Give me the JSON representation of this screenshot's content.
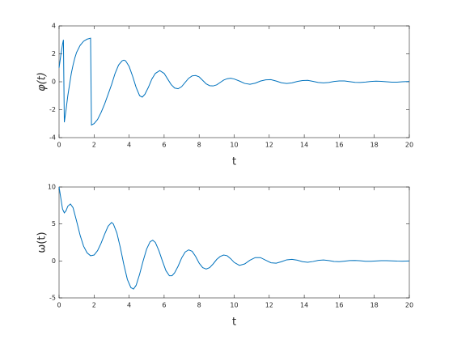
{
  "chart_data": [
    {
      "type": "line",
      "xlabel": "t",
      "ylabel": "φ(t)",
      "x": [
        0,
        0.1,
        0.2,
        0.25,
        0.3,
        0.4,
        0.5,
        0.6,
        0.7,
        0.8,
        0.9,
        1.0,
        1.2,
        1.4,
        1.6,
        1.8,
        1.85,
        2.0,
        2.2,
        2.4,
        2.6,
        2.8,
        3.0,
        3.2,
        3.4,
        3.6,
        3.7,
        3.8,
        4.0,
        4.2,
        4.4,
        4.6,
        4.75,
        4.9,
        5.1,
        5.3,
        5.5,
        5.75,
        6.0,
        6.2,
        6.4,
        6.6,
        6.8,
        7.0,
        7.2,
        7.4,
        7.6,
        7.8,
        8.0,
        8.2,
        8.4,
        8.6,
        8.8,
        9.0,
        9.2,
        9.4,
        9.6,
        9.8,
        10.0,
        10.3,
        10.6,
        10.9,
        11.2,
        11.5,
        11.8,
        12.1,
        12.4,
        12.7,
        13.0,
        13.3,
        13.6,
        13.9,
        14.2,
        14.5,
        14.8,
        15.1,
        15.4,
        15.7,
        16.0,
        16.3,
        16.6,
        16.9,
        17.2,
        17.5,
        17.8,
        18.1,
        18.4,
        18.7,
        19.0,
        19.3,
        19.6,
        20
      ],
      "series": [
        {
          "color": "#0072bd",
          "values": [
            1.0,
            1.9,
            2.7,
            3.0,
            -2.9,
            -2.0,
            -1.0,
            -0.2,
            0.6,
            1.2,
            1.7,
            2.1,
            2.6,
            2.9,
            3.05,
            3.12,
            -3.1,
            -3.0,
            -2.7,
            -2.2,
            -1.6,
            -0.9,
            -0.2,
            0.6,
            1.2,
            1.5,
            1.55,
            1.5,
            1.1,
            0.4,
            -0.4,
            -1.0,
            -1.1,
            -0.9,
            -0.4,
            0.2,
            0.6,
            0.8,
            0.6,
            0.2,
            -0.2,
            -0.45,
            -0.5,
            -0.35,
            -0.05,
            0.25,
            0.42,
            0.45,
            0.35,
            0.1,
            -0.15,
            -0.28,
            -0.3,
            -0.22,
            -0.05,
            0.12,
            0.22,
            0.25,
            0.2,
            0.05,
            -0.12,
            -0.18,
            -0.1,
            0.05,
            0.14,
            0.15,
            0.05,
            -0.07,
            -0.12,
            -0.08,
            0.02,
            0.09,
            0.1,
            0.03,
            -0.05,
            -0.08,
            -0.05,
            0.02,
            0.06,
            0.06,
            0.01,
            -0.04,
            -0.05,
            -0.02,
            0.02,
            0.04,
            0.03,
            0,
            -0.03,
            -0.03,
            0,
            0.02
          ]
        }
      ],
      "xlim": [
        0,
        20
      ],
      "ylim": [
        -4,
        4
      ],
      "xticks": [
        0,
        2,
        4,
        6,
        8,
        10,
        12,
        14,
        16,
        18,
        20
      ],
      "yticks": [
        -4,
        -2,
        0,
        2,
        4
      ]
    },
    {
      "type": "line",
      "xlabel": "t",
      "ylabel": "ω(t)",
      "x": [
        0,
        0.1,
        0.2,
        0.3,
        0.4,
        0.5,
        0.65,
        0.8,
        1.0,
        1.2,
        1.4,
        1.6,
        1.8,
        2.0,
        2.2,
        2.4,
        2.6,
        2.8,
        3.0,
        3.1,
        3.3,
        3.5,
        3.7,
        3.9,
        4.1,
        4.25,
        4.4,
        4.6,
        4.8,
        5.0,
        5.2,
        5.35,
        5.5,
        5.7,
        5.9,
        6.1,
        6.3,
        6.45,
        6.6,
        6.8,
        7.0,
        7.2,
        7.4,
        7.6,
        7.8,
        8.0,
        8.2,
        8.4,
        8.6,
        8.8,
        9.0,
        9.2,
        9.4,
        9.6,
        9.8,
        10.0,
        10.3,
        10.6,
        10.9,
        11.2,
        11.5,
        11.8,
        12.1,
        12.4,
        12.7,
        13.0,
        13.3,
        13.6,
        13.9,
        14.2,
        14.5,
        14.8,
        15.1,
        15.4,
        15.7,
        16.0,
        16.3,
        16.6,
        16.9,
        17.2,
        17.5,
        17.8,
        18.1,
        18.4,
        18.7,
        19.0,
        19.3,
        19.6,
        20
      ],
      "series": [
        {
          "color": "#0072bd",
          "values": [
            10,
            8.5,
            7.0,
            6.5,
            6.8,
            7.4,
            7.7,
            7.2,
            5.4,
            3.5,
            2.0,
            1.1,
            0.7,
            0.8,
            1.4,
            2.4,
            3.6,
            4.7,
            5.2,
            5.0,
            3.8,
            1.8,
            -0.5,
            -2.5,
            -3.6,
            -3.8,
            -3.3,
            -1.8,
            0.0,
            1.6,
            2.6,
            2.8,
            2.5,
            1.4,
            0.0,
            -1.3,
            -2.0,
            -2.0,
            -1.6,
            -0.7,
            0.4,
            1.2,
            1.5,
            1.3,
            0.6,
            -0.3,
            -0.9,
            -1.1,
            -0.9,
            -0.4,
            0.2,
            0.6,
            0.8,
            0.7,
            0.3,
            -0.2,
            -0.6,
            -0.4,
            0.1,
            0.45,
            0.45,
            0.1,
            -0.25,
            -0.3,
            -0.1,
            0.15,
            0.22,
            0.1,
            -0.1,
            -0.18,
            -0.08,
            0.08,
            0.13,
            0.05,
            -0.07,
            -0.1,
            -0.03,
            0.05,
            0.07,
            0.02,
            -0.04,
            -0.05,
            -0.01,
            0.03,
            0.04,
            0.01,
            -0.02,
            -0.03,
            0
          ]
        }
      ],
      "xlim": [
        0,
        20
      ],
      "ylim": [
        -5,
        10
      ],
      "xticks": [
        0,
        2,
        4,
        6,
        8,
        10,
        12,
        14,
        16,
        18,
        20
      ],
      "yticks": [
        -5,
        0,
        5,
        10
      ]
    }
  ]
}
